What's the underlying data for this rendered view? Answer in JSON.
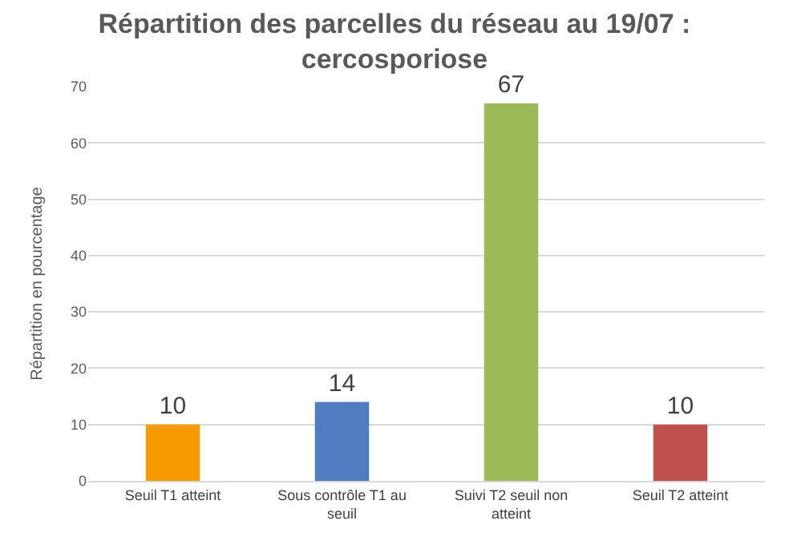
{
  "chart_data": {
    "type": "bar",
    "title": "Répartition des parcelles du réseau au 19/07 : cercosporiose",
    "ylabel": "Répartition en pourcentage",
    "categories": [
      "Seuil T1 atteint",
      "Sous contrôle T1 au seuil",
      "Suivi T2 seuil non atteint",
      "Seuil T2 atteint"
    ],
    "values": [
      10,
      14,
      67,
      10
    ],
    "colors": [
      "#f59a00",
      "#4f7dbf",
      "#9bbb59",
      "#c0504d"
    ],
    "ylim": [
      0,
      70
    ],
    "yticks": [
      0,
      10,
      20,
      30,
      40,
      50,
      60,
      70
    ],
    "grid": "y",
    "data_labels": true
  }
}
